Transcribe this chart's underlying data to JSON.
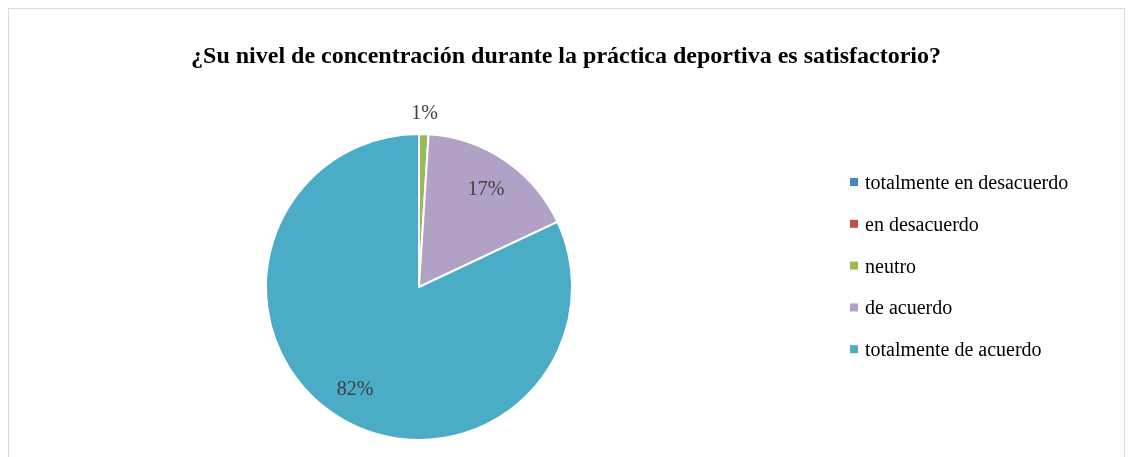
{
  "chart_data": {
    "type": "pie",
    "title": "¿Su nivel de concentración durante la práctica deportiva es satisfactorio?",
    "categories": [
      "totalmente en desacuerdo",
      "en desacuerdo",
      "neutro",
      "de acuerdo",
      "totalmente de acuerdo"
    ],
    "values": [
      0,
      0,
      1,
      17,
      82
    ],
    "colors": [
      "#4f81bd",
      "#c0504d",
      "#9bbb59",
      "#b2a1c7",
      "#4bacc6"
    ],
    "value_labels": [
      null,
      null,
      "1%",
      "17%",
      "82%"
    ],
    "legend": "right"
  }
}
